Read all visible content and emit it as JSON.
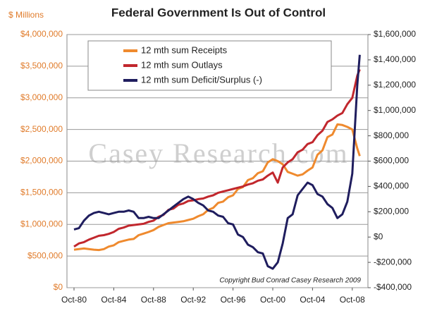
{
  "chart_data": {
    "type": "line",
    "title": "Federal Government Is Out of Control",
    "y_label": "$ Millions",
    "annotation": "Copyright Bud Conrad Casey Research 2009",
    "watermark": "Casey Research.com",
    "x": [
      "Oct-80",
      "Apr-81",
      "Oct-81",
      "Apr-82",
      "Oct-82",
      "Apr-83",
      "Oct-83",
      "Apr-84",
      "Oct-84",
      "Apr-85",
      "Oct-85",
      "Apr-86",
      "Oct-86",
      "Apr-87",
      "Oct-87",
      "Apr-88",
      "Oct-88",
      "Apr-89",
      "Oct-89",
      "Apr-90",
      "Oct-90",
      "Apr-91",
      "Oct-91",
      "Apr-92",
      "Oct-92",
      "Apr-93",
      "Oct-93",
      "Apr-94",
      "Oct-94",
      "Apr-95",
      "Oct-95",
      "Apr-96",
      "Oct-96",
      "Apr-97",
      "Oct-97",
      "Apr-98",
      "Oct-98",
      "Apr-99",
      "Oct-99",
      "Apr-00",
      "Oct-00",
      "Apr-01",
      "Oct-01",
      "Apr-02",
      "Oct-02",
      "Apr-03",
      "Oct-03",
      "Apr-04",
      "Oct-04",
      "Apr-05",
      "Oct-05",
      "Apr-06",
      "Oct-06",
      "Apr-07",
      "Oct-07",
      "Apr-08",
      "Oct-08",
      "Apr-09",
      "Jul-09"
    ],
    "series": [
      {
        "name": "12 mth sum Receipts",
        "color": "#ef8a2e",
        "axis": "y",
        "values": [
          600000,
          610000,
          620000,
          610000,
          600000,
          595000,
          610000,
          650000,
          670000,
          720000,
          740000,
          760000,
          770000,
          830000,
          855000,
          880000,
          910000,
          960000,
          990000,
          1020000,
          1030000,
          1040000,
          1050000,
          1070000,
          1090000,
          1130000,
          1160000,
          1230000,
          1260000,
          1340000,
          1360000,
          1430000,
          1460000,
          1560000,
          1590000,
          1700000,
          1730000,
          1810000,
          1840000,
          1980000,
          2030000,
          2000000,
          1950000,
          1830000,
          1800000,
          1770000,
          1790000,
          1850000,
          1900000,
          2100000,
          2170000,
          2380000,
          2420000,
          2580000,
          2570000,
          2540000,
          2500000,
          2200000,
          2080000
        ]
      },
      {
        "name": "12 mth sum Outlays",
        "color": "#c1272d",
        "axis": "y",
        "values": [
          650000,
          700000,
          720000,
          760000,
          790000,
          820000,
          830000,
          850000,
          880000,
          930000,
          950000,
          980000,
          990000,
          1000000,
          1010000,
          1040000,
          1060000,
          1120000,
          1150000,
          1230000,
          1250000,
          1310000,
          1330000,
          1370000,
          1380000,
          1400000,
          1410000,
          1440000,
          1460000,
          1500000,
          1520000,
          1540000,
          1560000,
          1580000,
          1600000,
          1630000,
          1650000,
          1690000,
          1710000,
          1770000,
          1820000,
          1660000,
          1900000,
          1980000,
          2030000,
          2140000,
          2180000,
          2270000,
          2300000,
          2410000,
          2480000,
          2620000,
          2660000,
          2720000,
          2760000,
          2900000,
          3000000,
          3350000,
          3450000
        ]
      },
      {
        "name": "12 mth sum Deficit/Surplus (-)",
        "color": "#1f1d5e",
        "axis": "y2",
        "values": [
          60000,
          70000,
          130000,
          170000,
          190000,
          200000,
          190000,
          180000,
          190000,
          200000,
          200000,
          210000,
          200000,
          150000,
          150000,
          160000,
          150000,
          150000,
          180000,
          210000,
          240000,
          270000,
          300000,
          320000,
          300000,
          270000,
          250000,
          210000,
          200000,
          170000,
          160000,
          110000,
          100000,
          20000,
          0,
          -60000,
          -80000,
          -120000,
          -130000,
          -230000,
          -250000,
          -200000,
          -50000,
          150000,
          180000,
          330000,
          380000,
          430000,
          410000,
          340000,
          320000,
          260000,
          230000,
          150000,
          180000,
          280000,
          500000,
          1200000,
          1440000
        ]
      }
    ],
    "xticks": [
      "Oct-80",
      "Oct-84",
      "Oct-88",
      "Oct-92",
      "Oct-96",
      "Oct-00",
      "Oct-04",
      "Oct-08"
    ],
    "ylim": [
      0,
      4000000
    ],
    "yticks": [
      {
        "value": 0,
        "label": "$0"
      },
      {
        "value": 500000,
        "label": "$500,000"
      },
      {
        "value": 1000000,
        "label": "$1,000,000"
      },
      {
        "value": 1500000,
        "label": "$1,500,000"
      },
      {
        "value": 2000000,
        "label": "$2,000,000"
      },
      {
        "value": 2500000,
        "label": "$2,500,000"
      },
      {
        "value": 3000000,
        "label": "$3,000,000"
      },
      {
        "value": 3500000,
        "label": "$3,500,000"
      },
      {
        "value": 4000000,
        "label": "$4,000,000"
      }
    ],
    "y2lim": [
      -400000,
      1600000
    ],
    "y2ticks": [
      {
        "value": -400000,
        "label": "-$400,000"
      },
      {
        "value": -200000,
        "label": "-$200,000"
      },
      {
        "value": 0,
        "label": "$0"
      },
      {
        "value": 200000,
        "label": "$200,000"
      },
      {
        "value": 400000,
        "label": "$400,000"
      },
      {
        "value": 600000,
        "label": "$600,000"
      },
      {
        "value": 800000,
        "label": "$800,000"
      },
      {
        "value": 1000000,
        "label": "$1,000,000"
      },
      {
        "value": 1200000,
        "label": "$1,200,000"
      },
      {
        "value": 1400000,
        "label": "$1,400,000"
      },
      {
        "value": 1600000,
        "label": "$1,600,000"
      }
    ],
    "grid": true
  }
}
